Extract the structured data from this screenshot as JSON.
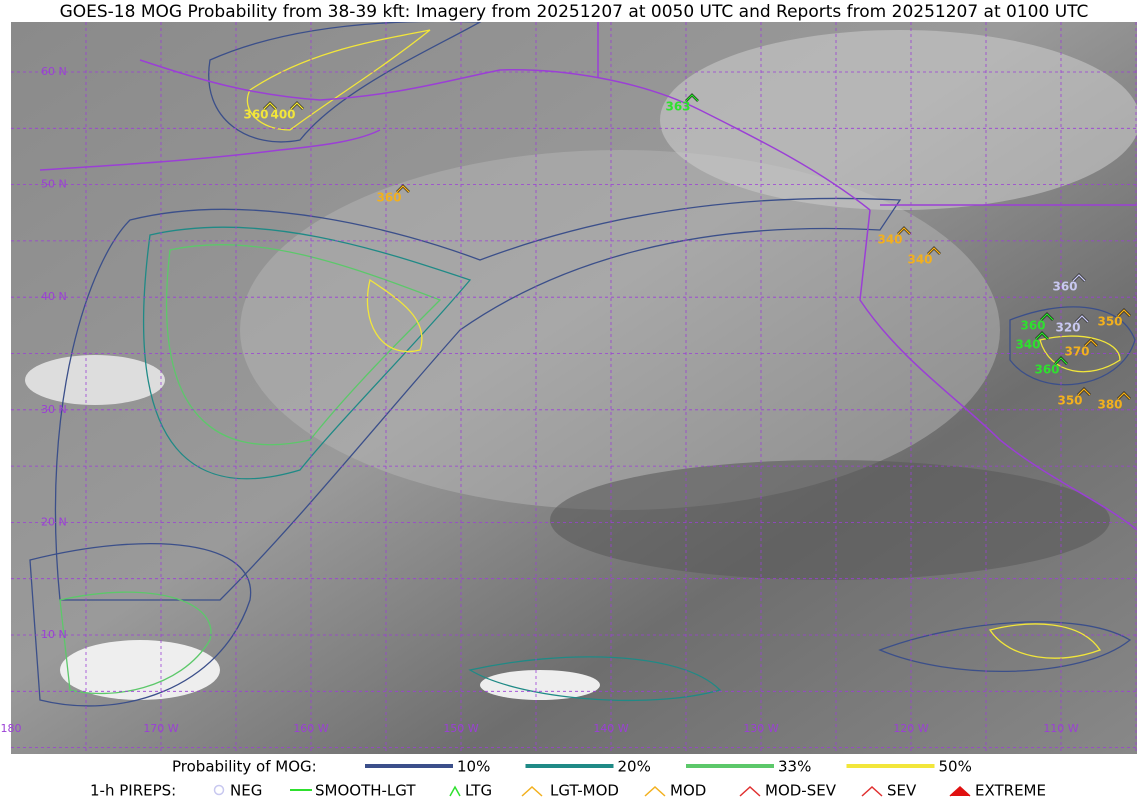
{
  "title": "GOES-18 MOG Probability from 38-39 kft: Imagery from 20251207 at 0050 UTC and Reports from 20251207 at 0100 UTC",
  "map": {
    "lat_labels": [
      "60 N",
      "50 N",
      "40 N",
      "30 N",
      "20 N",
      "10 N"
    ],
    "lon_labels": [
      "180",
      "170 W",
      "160 W",
      "150 W",
      "140 W",
      "130 W",
      "120 W",
      "110 W"
    ],
    "reports": [
      {
        "label": "360",
        "color": "#f2e63a"
      },
      {
        "label": "400",
        "color": "#f2e63a"
      },
      {
        "label": "360",
        "color": "#f2b01e"
      },
      {
        "label": "363",
        "color": "#2ee02e"
      },
      {
        "label": "340",
        "color": "#f2b01e"
      },
      {
        "label": "340",
        "color": "#f2b01e"
      },
      {
        "label": "360",
        "color": "#c8c8f0"
      },
      {
        "label": "360",
        "color": "#2ee02e"
      },
      {
        "label": "320",
        "color": "#c8c8f0"
      },
      {
        "label": "340",
        "color": "#2ee02e"
      },
      {
        "label": "350",
        "color": "#f2b01e"
      },
      {
        "label": "370",
        "color": "#f2b01e"
      },
      {
        "label": "360",
        "color": "#2ee02e"
      },
      {
        "label": "350",
        "color": "#f2b01e"
      },
      {
        "label": "380",
        "color": "#f2b01e"
      }
    ]
  },
  "legend": {
    "mog_title": "Probability of MOG:",
    "mog": [
      {
        "label": "10%",
        "color": "#3b4f8a"
      },
      {
        "label": "20%",
        "color": "#1f8a86"
      },
      {
        "label": "33%",
        "color": "#5cc86a"
      },
      {
        "label": "50%",
        "color": "#f2e63a"
      }
    ],
    "pirep_title": "1-h PIREPS:",
    "pireps": [
      {
        "label": "NEG",
        "color": "#c8c8f0"
      },
      {
        "label": "SMOOTH-LGT",
        "color": "#2ee02e"
      },
      {
        "label": "LTG",
        "color": "#2ee02e"
      },
      {
        "label": "LGT-MOD",
        "color": "#f2b01e"
      },
      {
        "label": "MOD",
        "color": "#f2b01e"
      },
      {
        "label": "MOD-SEV",
        "color": "#e03030"
      },
      {
        "label": "SEV",
        "color": "#e03030"
      },
      {
        "label": "EXTREME",
        "color": "#e01010"
      }
    ]
  }
}
